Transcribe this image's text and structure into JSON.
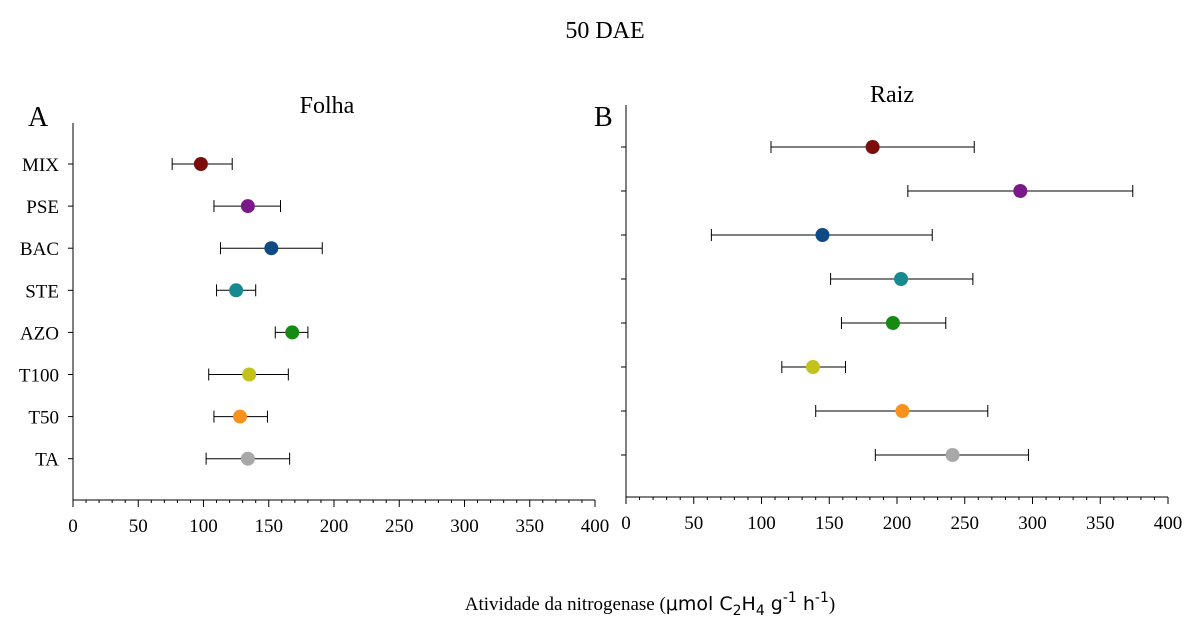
{
  "figure": {
    "title": "50 DAE",
    "xlabel_prefix": "Atividade da nitrogenase (",
    "xlabel_unit_mu": "μ",
    "xlabel_unit_mol": "mol C",
    "xlabel_unit_sub2": "2",
    "xlabel_unit_h": "H",
    "xlabel_unit_sub4": "4",
    "xlabel_unit_g": " g",
    "xlabel_unit_sup1": "-1",
    "xlabel_unit_hr": " h",
    "xlabel_unit_sup2": "-1",
    "xlabel_suffix": ")"
  },
  "chart_data": [
    {
      "type": "scatter",
      "panel_label": "A",
      "title": "Folha",
      "categories": [
        "MIX",
        "PSE",
        "BAC",
        "STE",
        "AZO",
        "T100",
        "T50",
        "TA"
      ],
      "values": [
        98,
        134,
        152,
        125,
        168,
        135,
        128,
        134
      ],
      "error_low": [
        76,
        108,
        113,
        110,
        155,
        104,
        108,
        102
      ],
      "error_high": [
        122,
        159,
        191,
        140,
        180,
        165,
        149,
        166
      ],
      "colors": [
        "#7b0d0d",
        "#7a1a88",
        "#0f4a85",
        "#178a8f",
        "#168a12",
        "#c3c21b",
        "#f7921e",
        "#a8a8a8"
      ],
      "xlim": [
        0,
        400
      ],
      "xticks": [
        0,
        50,
        100,
        150,
        200,
        250,
        300,
        350,
        400
      ],
      "grid": false
    },
    {
      "type": "scatter",
      "panel_label": "B",
      "title": "Raiz",
      "categories": [
        "MIX",
        "PSE",
        "BAC",
        "STE",
        "AZO",
        "T100",
        "T50",
        "TA"
      ],
      "values": [
        182,
        291,
        145,
        203,
        197,
        138,
        204,
        241
      ],
      "error_low": [
        107,
        208,
        63,
        151,
        159,
        115,
        140,
        184
      ],
      "error_high": [
        257,
        374,
        226,
        256,
        236,
        162,
        267,
        297
      ],
      "colors": [
        "#7b0d0d",
        "#7a1a88",
        "#0f4a85",
        "#178a8f",
        "#168a12",
        "#c3c21b",
        "#f7921e",
        "#a8a8a8"
      ],
      "xlim": [
        0,
        400
      ],
      "xticks": [
        0,
        50,
        100,
        150,
        200,
        250,
        300,
        350,
        400
      ],
      "grid": false
    }
  ]
}
